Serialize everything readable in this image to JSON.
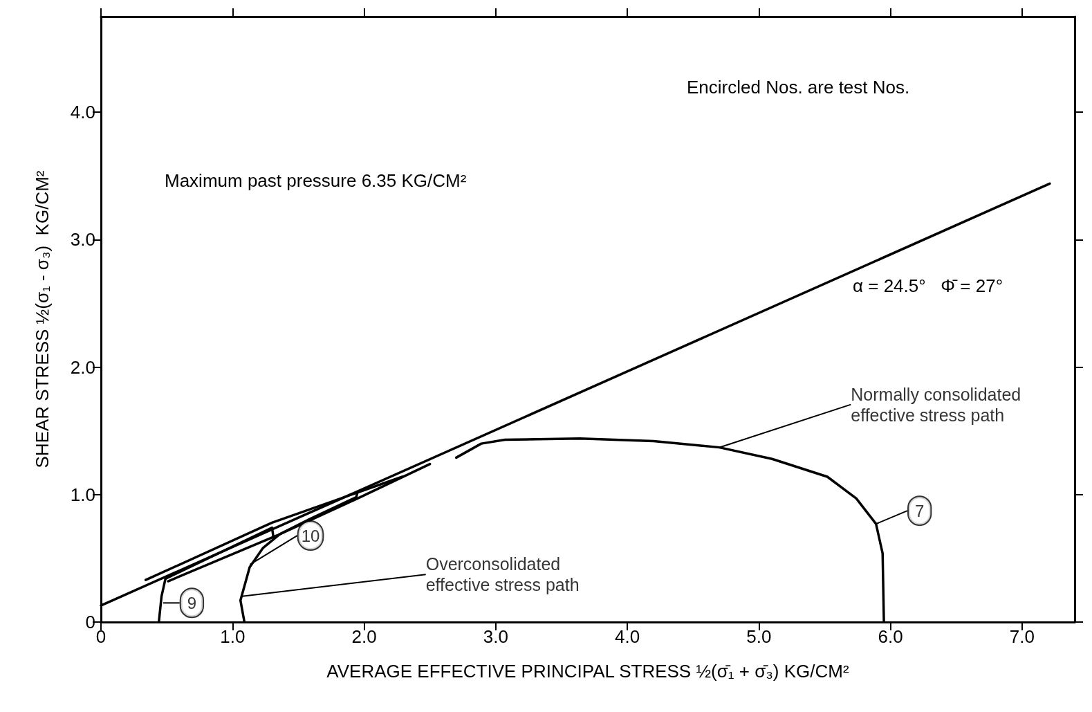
{
  "chart_data": {
    "type": "line",
    "xlabel": "AVERAGE EFFECTIVE PRINCIPAL STRESS ½(σ̄₁ + σ̄₃) KG/CM²",
    "ylabel": "SHEAR STRESS ½(σ₁ - σ₃)  KG/CM²",
    "xlim": [
      0,
      7.4
    ],
    "ylim": [
      0,
      4.75
    ],
    "xticks": [
      0,
      {
        "value": 1,
        "label": "1.0"
      },
      {
        "value": 2,
        "label": "2.0"
      },
      {
        "value": 3,
        "label": "3.0"
      },
      {
        "value": 4,
        "label": "4.0"
      },
      {
        "value": 5,
        "label": "5.0"
      },
      {
        "value": 6,
        "label": "6.0"
      },
      {
        "value": 7,
        "label": "7.0"
      }
    ],
    "yticks": [
      0,
      {
        "value": 1,
        "label": "1.0"
      },
      {
        "value": 2,
        "label": "2.0"
      },
      {
        "value": 3,
        "label": "3.0"
      },
      {
        "value": 4,
        "label": "4.0"
      }
    ],
    "grid": false,
    "marker": "none",
    "line_style": "solid",
    "series": [
      {
        "color": "#000000",
        "x": [
          0,
          7.21
        ],
        "values": [
          0.13,
          3.44
        ]
      },
      {
        "color": "#000000",
        "x": [
          5.95,
          5.94,
          5.89,
          5.74,
          5.52,
          5.1,
          4.7,
          4.2,
          3.64,
          3.07,
          2.89,
          2.7
        ],
        "values": [
          0,
          0.54,
          0.77,
          0.97,
          1.14,
          1.28,
          1.37,
          1.42,
          1.44,
          1.43,
          1.4,
          1.29
        ]
      },
      {
        "color": "#000000",
        "x": [
          1.09,
          1.06,
          1.13,
          1.23,
          1.36,
          1.59,
          1.94,
          1.95
        ],
        "values": [
          0,
          0.17,
          0.43,
          0.58,
          0.69,
          0.81,
          0.98,
          1.02
        ]
      },
      {
        "color": "#000000",
        "x": [
          0.44,
          0.46,
          0.49,
          1.3,
          1.31
        ],
        "values": [
          0,
          0.2,
          0.34,
          0.74,
          0.67
        ]
      },
      {
        "color": "#000000",
        "x": [
          0.51,
          1.34,
          1.95,
          2.5
        ],
        "values": [
          0.32,
          0.68,
          0.97,
          1.24
        ]
      },
      {
        "color": "#000000",
        "x": [
          0.34,
          1.3,
          2.29
        ],
        "values": [
          0.33,
          0.78,
          1.14
        ]
      }
    ],
    "annotations": [
      "Encircled Nos. are test Nos.",
      "Maximum past pressure 6.35 KG/CM²",
      "α = 24.5°   Φ̄ = 27°",
      {
        "text": "Normally consolidated\neffective stress path",
        "x": 4.7,
        "y": 1.37
      },
      {
        "text": "Overconsolidated\neffective stress path",
        "x": 1.06,
        "y": 0.2
      },
      {
        "text": "7",
        "x": 5.89,
        "y": 0.77
      },
      {
        "text": "10",
        "x": 1.13,
        "y": 0.45
      },
      {
        "text": "9",
        "x": 0.47,
        "y": 0.15
      }
    ]
  }
}
